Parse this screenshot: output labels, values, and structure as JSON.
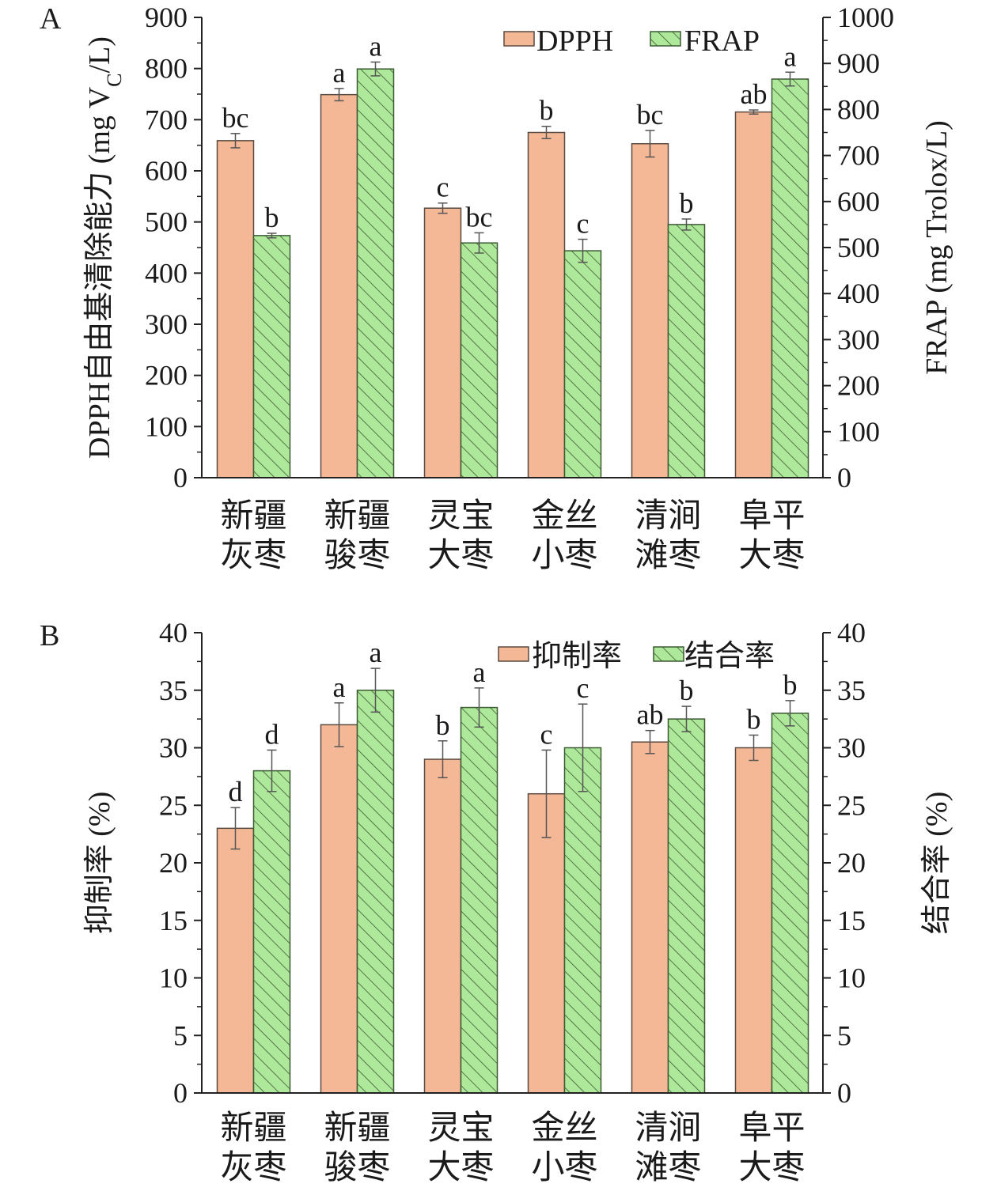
{
  "panel_a_label": "A",
  "panel_b_label": "B",
  "colors": {
    "series1_fill": "#f4b896",
    "series1_stroke": "#5a4a40",
    "series2_fill": "#aee89a",
    "series2_stroke": "#3c5a34",
    "series2_hatch": "#3c5a34",
    "error_bar": "#555555",
    "axis": "#222222"
  },
  "chart_data": [
    {
      "type": "bar",
      "panel": "A",
      "categories": [
        [
          "新疆",
          "灰枣"
        ],
        [
          "新疆",
          "骏枣"
        ],
        [
          "灵宝",
          "大枣"
        ],
        [
          "金丝",
          "小枣"
        ],
        [
          "清涧",
          "滩枣"
        ],
        [
          "阜平",
          "大枣"
        ]
      ],
      "ylabel_left": {
        "main": "DPPH自由基清除能力 (mg V",
        "sub": "C",
        "tail": "/L)"
      },
      "ylabel_right": "FRAP (mg Trolox/L)",
      "ylim_left": [
        0,
        900
      ],
      "yticks_left": [
        0,
        100,
        200,
        300,
        400,
        500,
        600,
        700,
        800,
        900
      ],
      "ylim_right": [
        0,
        1000
      ],
      "yticks_right": [
        0,
        100,
        200,
        300,
        400,
        500,
        600,
        700,
        800,
        900,
        1000
      ],
      "legend_position": "top-right",
      "grid": false,
      "series": [
        {
          "name": "DPPH",
          "axis": "left",
          "values": [
            659,
            749,
            527,
            675,
            653,
            715
          ],
          "errors": [
            14,
            12,
            10,
            12,
            26,
            4
          ],
          "labels": [
            "bc",
            "a",
            "c",
            "b",
            "bc",
            "ab"
          ]
        },
        {
          "name": "FRAP",
          "axis": "right",
          "values": [
            526,
            888,
            510,
            493,
            550,
            866
          ],
          "errors": [
            5,
            15,
            22,
            25,
            12,
            15
          ],
          "labels": [
            "b",
            "a",
            "bc",
            "c",
            "b",
            "a"
          ]
        }
      ]
    },
    {
      "type": "bar",
      "panel": "B",
      "categories": [
        [
          "新疆",
          "灰枣"
        ],
        [
          "新疆",
          "骏枣"
        ],
        [
          "灵宝",
          "大枣"
        ],
        [
          "金丝",
          "小枣"
        ],
        [
          "清涧",
          "滩枣"
        ],
        [
          "阜平",
          "大枣"
        ]
      ],
      "ylabel_left": {
        "main": "抑制率 (%)",
        "sub": "",
        "tail": ""
      },
      "ylabel_right": "结合率 (%)",
      "ylim_left": [
        0,
        40
      ],
      "yticks_left": [
        0,
        5,
        10,
        15,
        20,
        25,
        30,
        35,
        40
      ],
      "ylim_right": [
        0,
        40
      ],
      "yticks_right": [
        0,
        5,
        10,
        15,
        20,
        25,
        30,
        35,
        40
      ],
      "legend_position": "top-right",
      "grid": false,
      "series": [
        {
          "name": "抑制率",
          "axis": "left",
          "values": [
            23,
            32,
            29,
            26,
            30.5,
            30
          ],
          "errors": [
            1.8,
            1.9,
            1.6,
            3.8,
            1.0,
            1.1
          ],
          "labels": [
            "d",
            "a",
            "b",
            "c",
            "ab",
            "b"
          ]
        },
        {
          "name": "结合率",
          "axis": "right",
          "values": [
            28,
            35,
            33.5,
            30,
            32.5,
            33
          ],
          "errors": [
            1.8,
            1.9,
            1.7,
            3.8,
            1.1,
            1.1
          ],
          "labels": [
            "d",
            "a",
            "a",
            "c",
            "b",
            "b"
          ]
        }
      ]
    }
  ]
}
